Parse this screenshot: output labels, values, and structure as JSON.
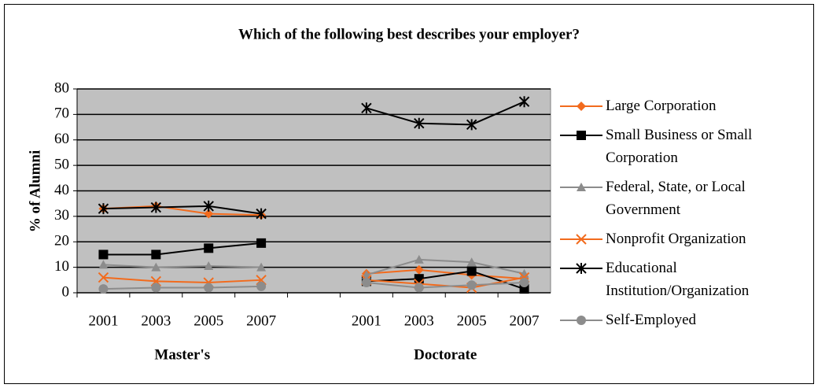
{
  "chart_data": {
    "type": "line",
    "title": "Which of the following best describes your employer?",
    "y_label": "% of Alumni",
    "categories": [
      "2001",
      "2003",
      "2005",
      "2007",
      null,
      "2001",
      "2003",
      "2005",
      "2007"
    ],
    "groups": [
      "Master's",
      "Doctorate"
    ],
    "ylim": [
      0,
      80
    ],
    "yticks": [
      0,
      10,
      20,
      30,
      40,
      50,
      60,
      70,
      80
    ],
    "grid": true,
    "legend": "right",
    "series": [
      {
        "name": "Large Corporation",
        "color": "#f26b1d",
        "marker": "diamond",
        "values": [
          33,
          34,
          31,
          30.5,
          null,
          7.5,
          9,
          7,
          5.5
        ]
      },
      {
        "name": "Small Business or Small Corporation",
        "color": "#000000",
        "marker": "square",
        "values": [
          15,
          15,
          17.5,
          19.5,
          null,
          4.5,
          5.5,
          8.5,
          1.5
        ]
      },
      {
        "name": "Federal, State, or Local Government",
        "color": "#8c8c8c",
        "marker": "triangle",
        "values": [
          11,
          10,
          10.5,
          10,
          null,
          7,
          13,
          12,
          7.5
        ]
      },
      {
        "name": "Nonprofit Organization",
        "color": "#f26b1d",
        "marker": "x",
        "values": [
          6,
          4.5,
          4,
          5,
          null,
          5,
          3.5,
          2,
          6
        ]
      },
      {
        "name": "Educational Institution/Organization",
        "color": "#000000",
        "marker": "asterisk",
        "values": [
          33,
          33.5,
          34,
          31,
          null,
          72.5,
          66.5,
          66,
          75
        ]
      },
      {
        "name": "Self-Employed",
        "color": "#8c8c8c",
        "marker": "circle",
        "values": [
          1.5,
          2,
          2,
          2.5,
          null,
          4,
          2,
          3,
          4
        ]
      }
    ]
  }
}
